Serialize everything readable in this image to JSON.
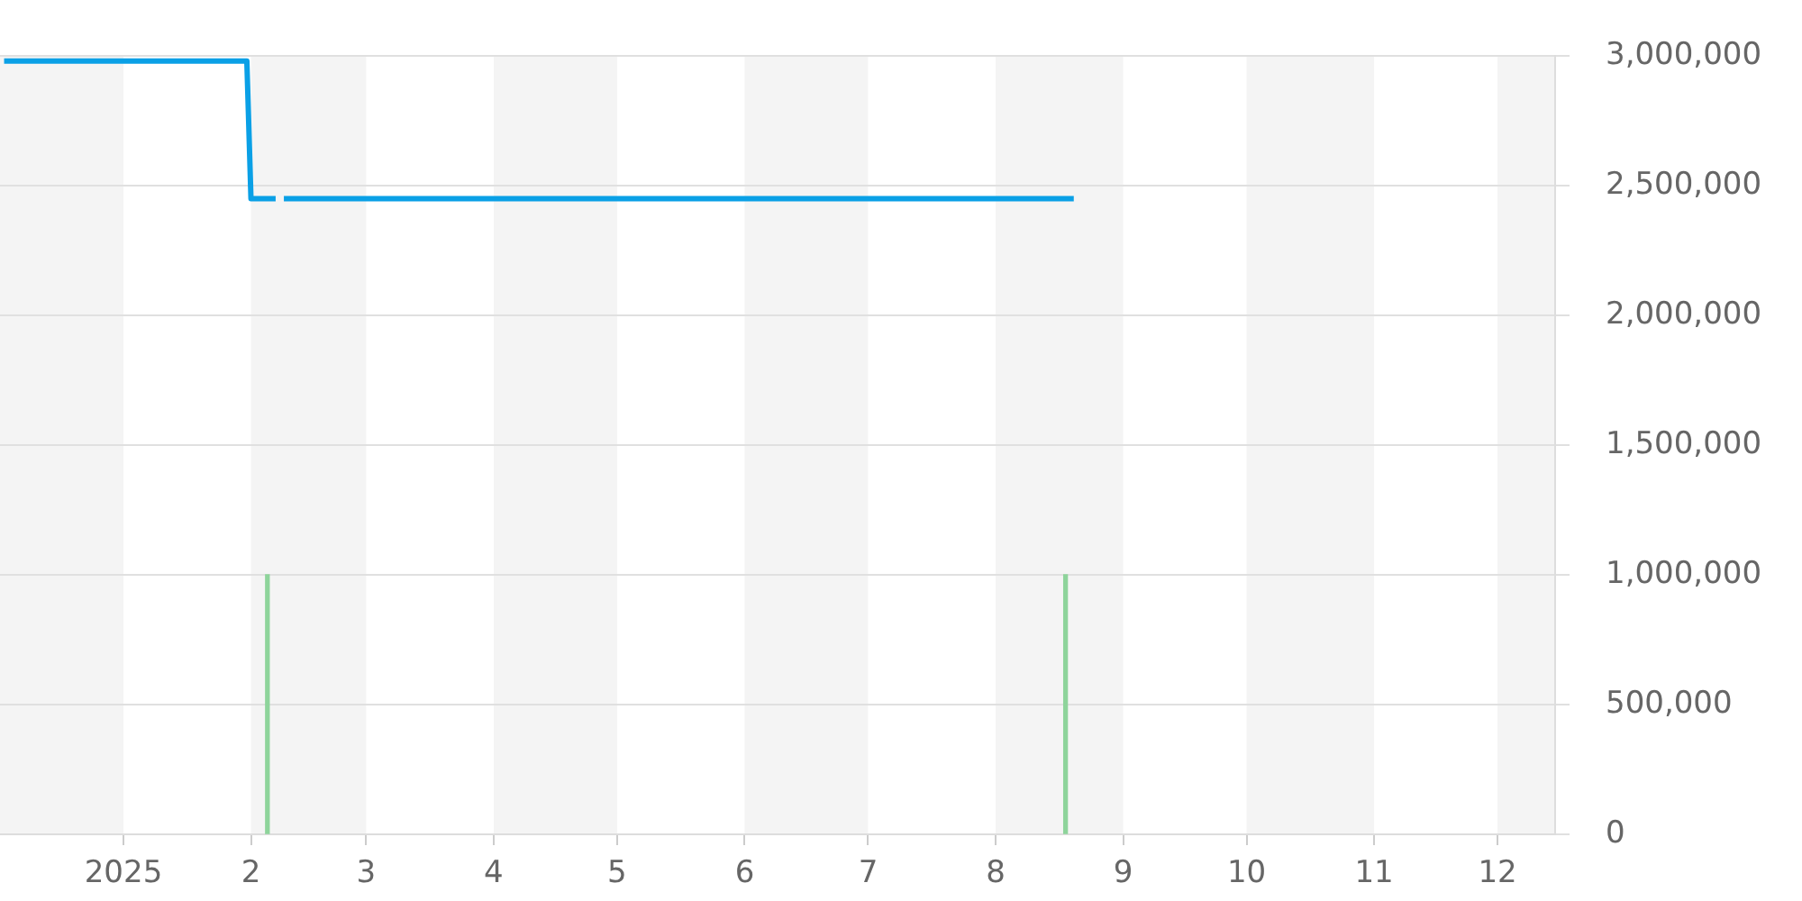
{
  "chart_data": {
    "type": "line",
    "series": [
      {
        "color": "#0aa0e6",
        "x": [
          "2024-12-03",
          "2025-01-31",
          "2025-02-01",
          "2025-02-07",
          "2025-02-08",
          "2025-02-09",
          "2025-08-20"
        ],
        "values": [
          2980000,
          2980000,
          2450000,
          2450000,
          null,
          2450000,
          2450000
        ]
      },
      {
        "type": "bar",
        "color": "#8ed49b",
        "x": [
          "2025-02-05",
          "2025-08-18"
        ],
        "values": [
          1000000,
          1000000
        ]
      }
    ],
    "xlim": [
      "2024-12-02",
      "2025-12-15"
    ],
    "xticks": [
      {
        "value": "2025-01-01",
        "label": "2025"
      },
      {
        "value": "2025-02-01",
        "label": "2"
      },
      {
        "value": "2025-03-01",
        "label": "3"
      },
      {
        "value": "2025-04-01",
        "label": "4"
      },
      {
        "value": "2025-05-01",
        "label": "5"
      },
      {
        "value": "2025-06-01",
        "label": "6"
      },
      {
        "value": "2025-07-01",
        "label": "7"
      },
      {
        "value": "2025-08-01",
        "label": "8"
      },
      {
        "value": "2025-09-01",
        "label": "9"
      },
      {
        "value": "2025-10-01",
        "label": "10"
      },
      {
        "value": "2025-11-01",
        "label": "11"
      },
      {
        "value": "2025-12-01",
        "label": "12"
      }
    ],
    "ylim": [
      0,
      3000000
    ],
    "yticks": [
      0,
      {
        "value": 500000,
        "label": "500,000"
      },
      {
        "value": 1000000,
        "label": "1,000,000"
      },
      {
        "value": 1500000,
        "label": "1,500,000"
      },
      {
        "value": 2000000,
        "label": "2,000,000"
      },
      {
        "value": 2500000,
        "label": "2,500,000"
      },
      {
        "value": 3000000,
        "label": "3,000,000"
      }
    ],
    "bands": [
      {
        "axis": "x",
        "from": "2024-12-02",
        "to": "2025-01-01",
        "color": "#f4f4f4"
      },
      {
        "axis": "x",
        "from": "2025-02-01",
        "to": "2025-03-01",
        "color": "#f4f4f4"
      },
      {
        "axis": "x",
        "from": "2025-04-01",
        "to": "2025-05-01",
        "color": "#f4f4f4"
      },
      {
        "axis": "x",
        "from": "2025-06-01",
        "to": "2025-07-01",
        "color": "#f4f4f4"
      },
      {
        "axis": "x",
        "from": "2025-08-01",
        "to": "2025-09-01",
        "color": "#f4f4f4"
      },
      {
        "axis": "x",
        "from": "2025-10-01",
        "to": "2025-11-01",
        "color": "#f4f4f4"
      },
      {
        "axis": "x",
        "from": "2025-12-01",
        "to": "2025-12-15",
        "color": "#f4f4f4"
      }
    ],
    "grid": "y",
    "legend": false,
    "marker": "none",
    "line_style": "solid"
  }
}
